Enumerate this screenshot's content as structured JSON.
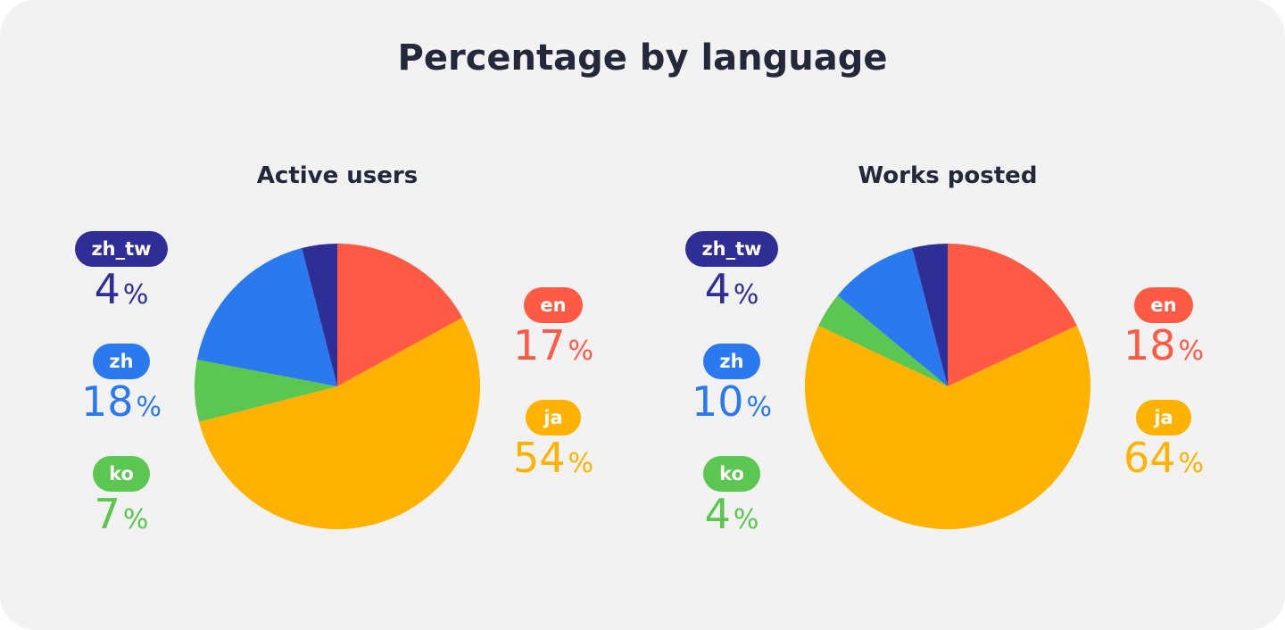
{
  "title": "Percentage by language",
  "chart_data": [
    {
      "type": "pie",
      "title": "Active users",
      "slices": [
        {
          "label": "en",
          "value": 17,
          "color": "#ff5a43"
        },
        {
          "label": "ja",
          "value": 54,
          "color": "#ffb300"
        },
        {
          "label": "ko",
          "value": 7,
          "color": "#5bc650"
        },
        {
          "label": "zh",
          "value": 18,
          "color": "#2b79ee"
        },
        {
          "label": "zh_tw",
          "value": 4,
          "color": "#2e2e96"
        }
      ],
      "unit": "%"
    },
    {
      "type": "pie",
      "title": "Works posted",
      "slices": [
        {
          "label": "en",
          "value": 18,
          "color": "#ff5a43"
        },
        {
          "label": "ja",
          "value": 64,
          "color": "#ffb300"
        },
        {
          "label": "ko",
          "value": 4,
          "color": "#5bc650"
        },
        {
          "label": "zh",
          "value": 10,
          "color": "#2b79ee"
        },
        {
          "label": "zh_tw",
          "value": 4,
          "color": "#2e2e96"
        }
      ],
      "unit": "%"
    }
  ]
}
